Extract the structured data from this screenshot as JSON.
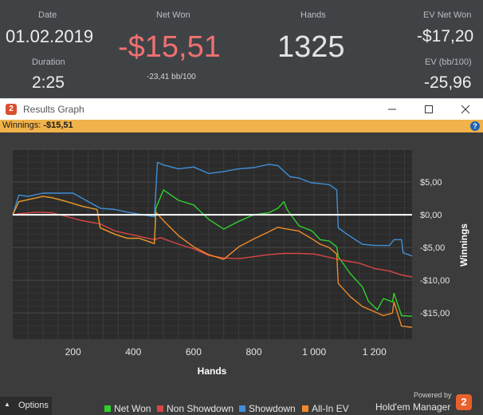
{
  "stats": {
    "date_label": "Date",
    "date_value": "01.02.2019",
    "duration_label": "Duration",
    "duration_value": "2:25",
    "net_won_label": "Net Won",
    "net_won_value": "-$15,51",
    "net_won_sub": "-23,41 bb/100",
    "hands_label": "Hands",
    "hands_value": "1325",
    "ev_net_won_label": "EV Net Won",
    "ev_net_won_value": "-$17,20",
    "ev_bb_label": "EV (bb/100)",
    "ev_bb_value": "-25,96"
  },
  "window": {
    "icon_text": "2",
    "title": "Results Graph"
  },
  "infobar": {
    "label": "Winnings:",
    "value": "-$15,51",
    "help_text": "?"
  },
  "footer": {
    "options_label": "Options",
    "powered_by": "Powered by",
    "brand": "Hold'em Manager",
    "brand_badge": "2"
  },
  "colors": {
    "net_won": "#2ed12e",
    "non_showdown": "#d94545",
    "showdown": "#3f8fd8",
    "all_in_ev": "#f08a28",
    "zero_line": "#ffffff",
    "net_won_text": "#f07070"
  },
  "chart_data": {
    "type": "line",
    "xlabel": "Hands",
    "ylabel": "Winnings",
    "xlim": [
      0,
      1325
    ],
    "ylim": [
      -19,
      10
    ],
    "xticks": [
      200,
      400,
      600,
      800,
      1000,
      1200
    ],
    "xtick_labels": [
      "200",
      "400",
      "600",
      "800",
      "1 000",
      "1 200"
    ],
    "yticks": [
      5,
      0,
      -5,
      -10,
      -15
    ],
    "ytick_labels": [
      "$5,00",
      "$0,00",
      "-$5,00",
      "-$10,00",
      "-$15,00"
    ],
    "grid": true,
    "legend_position": "bottom",
    "series": [
      {
        "name": "Net Won",
        "color": "#2ed12e",
        "x": [
          0,
          20,
          60,
          100,
          130,
          180,
          230,
          280,
          290,
          340,
          380,
          420,
          470,
          475,
          500,
          550,
          600,
          650,
          700,
          750,
          800,
          850,
          880,
          900,
          910,
          950,
          990,
          1000,
          1020,
          1050,
          1075,
          1080,
          1120,
          1160,
          1180,
          1210,
          1230,
          1260,
          1265,
          1290,
          1325
        ],
        "y": [
          0.0,
          2.0,
          2.4,
          2.8,
          2.6,
          2.0,
          1.3,
          0.8,
          -2.0,
          -3.0,
          -3.6,
          -3.6,
          -4.4,
          1.0,
          3.8,
          2.2,
          1.5,
          -0.7,
          -2.2,
          -1.0,
          0.0,
          0.3,
          1.0,
          2.0,
          0.8,
          -1.7,
          -2.4,
          -2.8,
          -3.8,
          -4.0,
          -4.9,
          -6.4,
          -9.0,
          -11.0,
          -13.2,
          -14.5,
          -12.8,
          -13.3,
          -12.0,
          -15.4,
          -15.5
        ]
      },
      {
        "name": "Non Showdown",
        "color": "#d94545",
        "x": [
          0,
          30,
          80,
          130,
          180,
          230,
          290,
          340,
          390,
          440,
          470,
          490,
          550,
          600,
          650,
          700,
          750,
          800,
          850,
          900,
          950,
          1000,
          1050,
          1100,
          1150,
          1200,
          1250,
          1290,
          1325
        ],
        "y": [
          0.0,
          0.2,
          0.4,
          0.3,
          -0.3,
          -0.9,
          -1.4,
          -2.5,
          -3.0,
          -3.5,
          -3.8,
          -3.5,
          -4.5,
          -5.2,
          -6.2,
          -6.6,
          -6.7,
          -6.4,
          -6.1,
          -5.9,
          -5.9,
          -6.0,
          -6.5,
          -7.0,
          -7.4,
          -8.2,
          -8.6,
          -9.2,
          -9.5
        ]
      },
      {
        "name": "Showdown",
        "color": "#3f8fd8",
        "x": [
          0,
          20,
          50,
          100,
          200,
          290,
          340,
          380,
          470,
          480,
          500,
          550,
          600,
          650,
          700,
          750,
          800,
          850,
          880,
          920,
          950,
          990,
          1050,
          1075,
          1080,
          1110,
          1160,
          1200,
          1250,
          1265,
          1290,
          1295,
          1325
        ],
        "y": [
          0.0,
          3.0,
          2.8,
          3.3,
          3.3,
          1.0,
          0.8,
          0.4,
          -0.3,
          8.0,
          7.6,
          7.0,
          7.3,
          6.3,
          6.6,
          7.0,
          7.2,
          7.7,
          7.5,
          5.8,
          5.6,
          4.9,
          4.6,
          3.8,
          -2.0,
          -3.0,
          -4.5,
          -4.7,
          -4.7,
          -3.8,
          -3.8,
          -5.8,
          -6.3
        ]
      },
      {
        "name": "All-In EV",
        "color": "#f08a28",
        "x": [
          0,
          20,
          60,
          100,
          130,
          180,
          230,
          280,
          290,
          340,
          380,
          420,
          470,
          475,
          500,
          550,
          600,
          650,
          700,
          750,
          800,
          850,
          880,
          900,
          950,
          990,
          1020,
          1050,
          1075,
          1080,
          1120,
          1160,
          1200,
          1230,
          1260,
          1265,
          1290,
          1325
        ],
        "y": [
          0.0,
          2.0,
          2.4,
          2.8,
          2.6,
          2.0,
          1.3,
          0.8,
          -2.0,
          -3.0,
          -3.6,
          -3.6,
          -4.4,
          0.4,
          -0.9,
          -3.2,
          -4.9,
          -6.1,
          -6.8,
          -4.9,
          -3.7,
          -2.6,
          -1.9,
          -2.1,
          -2.5,
          -3.6,
          -4.5,
          -5.0,
          -6.0,
          -10.5,
          -12.5,
          -14.0,
          -14.8,
          -15.4,
          -15.0,
          -13.3,
          -17.0,
          -17.2
        ]
      }
    ]
  }
}
